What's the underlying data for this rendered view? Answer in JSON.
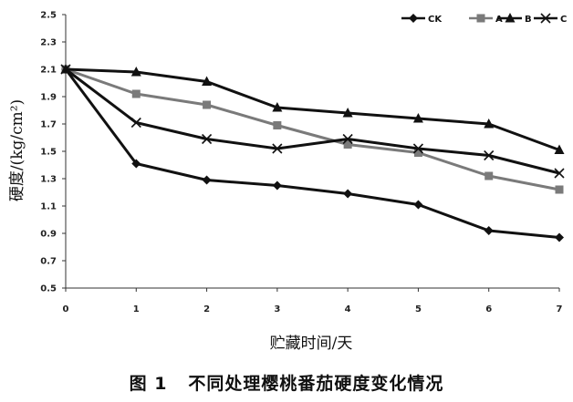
{
  "chart_data": {
    "type": "line",
    "xlabel": "贮藏时间/天",
    "ylabel": "硬度/(kg/cm²)",
    "caption": "图 1   不同处理樱桃番茄硬度变化情况",
    "x": [
      0,
      1,
      2,
      3,
      4,
      5,
      6,
      7
    ],
    "xticks": [
      "0",
      "1",
      "2",
      "3",
      "4",
      "5",
      "6",
      "7"
    ],
    "yticks": [
      "0.5",
      "0.7",
      "0.9",
      "1.1",
      "1.3",
      "1.5",
      "1.7",
      "1.9",
      "2.1",
      "2.3",
      "2.5"
    ],
    "ylim": [
      0.5,
      2.5
    ],
    "xlim": [
      0,
      7
    ],
    "grid": false,
    "legend_position": "top-right",
    "series": [
      {
        "name": "CK",
        "marker": "diamond",
        "color": "#111111",
        "values": [
          2.1,
          1.41,
          1.29,
          1.25,
          1.19,
          1.11,
          0.92,
          0.87
        ]
      },
      {
        "name": "A",
        "marker": "square",
        "color": "#7a7a7a",
        "values": [
          2.1,
          1.92,
          1.84,
          1.69,
          1.55,
          1.49,
          1.32,
          1.22
        ]
      },
      {
        "name": "B",
        "marker": "triangle",
        "color": "#111111",
        "values": [
          2.1,
          2.08,
          2.01,
          1.82,
          1.78,
          1.74,
          1.7,
          1.51
        ]
      },
      {
        "name": "C",
        "marker": "x",
        "color": "#111111",
        "values": [
          2.1,
          1.71,
          1.59,
          1.52,
          1.59,
          1.52,
          1.47,
          1.34
        ]
      }
    ]
  }
}
